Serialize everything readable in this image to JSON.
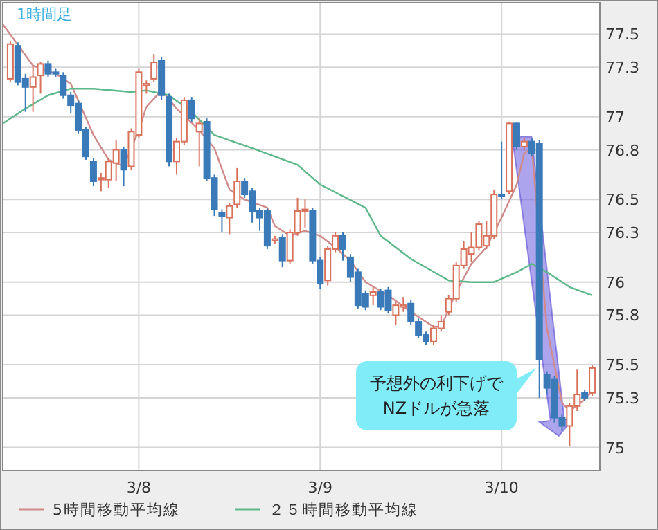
{
  "chart_data": {
    "type": "candlestick",
    "title": "1時間足",
    "x": [
      "--03-07T07:00",
      "--03-07T08:00",
      "--03-07T09:00",
      "--03-07T10:00",
      "--03-07T11:00",
      "--03-07T12:00",
      "--03-07T13:00",
      "--03-07T14:00",
      "--03-07T15:00",
      "--03-07T16:00",
      "--03-07T17:00",
      "--03-07T18:00",
      "--03-07T19:00",
      "--03-07T20:00",
      "--03-07T21:00",
      "--03-07T22:00",
      "--03-07T23:00",
      "--03-08T00:00",
      "--03-08T01:00",
      "--03-08T02:00",
      "--03-08T03:00",
      "--03-08T04:00",
      "--03-08T05:00",
      "--03-08T06:00",
      "--03-08T07:00",
      "--03-08T08:00",
      "--03-08T09:00",
      "--03-08T10:00",
      "--03-08T11:00",
      "--03-08T12:00",
      "--03-08T13:00",
      "--03-08T14:00",
      "--03-08T15:00",
      "--03-08T16:00",
      "--03-08T17:00",
      "--03-08T18:00",
      "--03-08T19:00",
      "--03-08T20:00",
      "--03-08T21:00",
      "--03-08T22:00",
      "--03-08T23:00",
      "--03-09T00:00",
      "--03-09T01:00",
      "--03-09T02:00",
      "--03-09T03:00",
      "--03-09T04:00",
      "--03-09T05:00",
      "--03-09T06:00",
      "--03-09T07:00",
      "--03-09T08:00",
      "--03-09T09:00",
      "--03-09T10:00",
      "--03-09T11:00",
      "--03-09T12:00",
      "--03-09T13:00",
      "--03-09T14:00",
      "--03-09T15:00",
      "--03-09T16:00",
      "--03-09T17:00",
      "--03-09T18:00",
      "--03-09T19:00",
      "--03-09T20:00",
      "--03-09T21:00",
      "--03-09T22:00",
      "--03-09T23:00",
      "--03-10T00:00",
      "--03-10T01:00",
      "--03-10T02:00",
      "--03-10T03:00",
      "--03-10T04:00",
      "--03-10T05:00",
      "--03-10T06:00",
      "--03-10T07:00",
      "--03-10T08:00",
      "--03-10T09:00",
      "--03-10T10:00",
      "--03-10T11:00",
      "--03-10T12:00"
    ],
    "ohlc": [
      [
        77.23,
        77.46,
        77.21,
        77.44
      ],
      [
        77.43,
        77.45,
        77.19,
        77.21
      ],
      [
        77.23,
        77.26,
        77.03,
        77.18
      ],
      [
        77.18,
        77.31,
        77.03,
        77.24
      ],
      [
        77.25,
        77.33,
        77.14,
        77.32
      ],
      [
        77.32,
        77.34,
        77.24,
        77.26
      ],
      [
        77.27,
        77.29,
        77.24,
        77.26
      ],
      [
        77.25,
        77.27,
        77.11,
        77.13
      ],
      [
        77.13,
        77.15,
        77.02,
        77.07
      ],
      [
        77.08,
        77.1,
        76.9,
        76.92
      ],
      [
        76.92,
        76.94,
        76.74,
        76.76
      ],
      [
        76.73,
        76.75,
        76.58,
        76.61
      ],
      [
        76.62,
        76.66,
        76.55,
        76.63
      ],
      [
        76.62,
        76.75,
        76.57,
        76.73
      ],
      [
        76.72,
        76.86,
        76.61,
        76.8
      ],
      [
        76.8,
        76.82,
        76.58,
        76.68
      ],
      [
        76.7,
        76.93,
        76.68,
        76.91
      ],
      [
        76.89,
        77.29,
        76.87,
        77.27
      ],
      [
        77.19,
        77.22,
        77.14,
        77.2
      ],
      [
        77.23,
        77.38,
        77.21,
        77.33
      ],
      [
        77.34,
        77.36,
        77.1,
        77.13
      ],
      [
        77.12,
        77.14,
        76.7,
        76.73
      ],
      [
        76.73,
        76.87,
        76.65,
        76.85
      ],
      [
        76.85,
        77.12,
        76.83,
        77.1
      ],
      [
        77.1,
        77.12,
        76.97,
        76.99
      ],
      [
        76.91,
        76.99,
        76.7,
        76.96
      ],
      [
        76.97,
        76.99,
        76.61,
        76.63
      ],
      [
        76.63,
        76.65,
        76.4,
        76.44
      ],
      [
        76.42,
        76.44,
        76.3,
        76.4
      ],
      [
        76.39,
        76.48,
        76.29,
        76.46
      ],
      [
        76.47,
        76.69,
        76.45,
        76.61
      ],
      [
        76.61,
        76.63,
        76.51,
        76.53
      ],
      [
        76.55,
        76.57,
        76.36,
        76.43
      ],
      [
        76.43,
        76.45,
        76.31,
        76.39
      ],
      [
        76.43,
        76.45,
        76.2,
        76.22
      ],
      [
        76.25,
        76.28,
        76.23,
        76.26
      ],
      [
        76.27,
        76.29,
        76.09,
        76.13
      ],
      [
        76.13,
        76.32,
        76.11,
        76.3
      ],
      [
        76.3,
        76.51,
        76.28,
        76.43
      ],
      [
        76.43,
        76.5,
        76.33,
        76.44
      ],
      [
        76.43,
        76.45,
        76.11,
        76.13
      ],
      [
        76.13,
        76.15,
        75.96,
        75.99
      ],
      [
        76.01,
        76.22,
        75.98,
        76.2
      ],
      [
        76.2,
        76.3,
        76.18,
        76.28
      ],
      [
        76.28,
        76.3,
        76.13,
        76.2
      ],
      [
        76.15,
        76.17,
        76.0,
        76.03
      ],
      [
        76.06,
        76.08,
        75.84,
        75.86
      ],
      [
        75.93,
        75.95,
        75.83,
        75.85
      ],
      [
        75.92,
        75.97,
        75.86,
        75.94
      ],
      [
        75.94,
        75.96,
        75.83,
        75.85
      ],
      [
        75.95,
        75.97,
        75.81,
        75.83
      ],
      [
        75.8,
        75.88,
        75.74,
        75.86
      ],
      [
        75.85,
        75.91,
        75.82,
        75.86
      ],
      [
        75.87,
        75.89,
        75.74,
        75.76
      ],
      [
        75.76,
        75.78,
        75.66,
        75.68
      ],
      [
        75.68,
        75.7,
        75.62,
        75.64
      ],
      [
        75.64,
        75.74,
        75.62,
        75.72
      ],
      [
        75.72,
        75.8,
        75.7,
        75.76
      ],
      [
        75.82,
        75.92,
        75.8,
        75.9
      ],
      [
        75.9,
        76.12,
        75.88,
        76.1
      ],
      [
        76.1,
        76.25,
        76.08,
        76.2
      ],
      [
        76.17,
        76.3,
        76.12,
        76.21
      ],
      [
        76.21,
        76.37,
        76.19,
        76.35
      ],
      [
        76.22,
        76.37,
        76.2,
        76.28
      ],
      [
        76.28,
        76.56,
        76.26,
        76.53
      ],
      [
        76.53,
        76.85,
        76.5,
        76.52
      ],
      [
        76.55,
        76.97,
        76.53,
        76.96
      ],
      [
        76.96,
        76.97,
        76.8,
        76.82
      ],
      [
        76.82,
        76.87,
        76.8,
        76.85
      ],
      [
        76.85,
        76.87,
        76.76,
        76.78
      ],
      [
        76.84,
        76.86,
        75.3,
        75.53
      ],
      [
        75.44,
        75.46,
        75.32,
        75.36
      ],
      [
        75.41,
        75.43,
        75.15,
        75.18
      ],
      [
        75.18,
        75.2,
        75.1,
        75.13
      ],
      [
        75.13,
        75.27,
        75.01,
        75.25
      ],
      [
        75.25,
        75.47,
        75.22,
        75.32
      ],
      [
        75.33,
        75.35,
        75.28,
        75.3
      ],
      [
        75.33,
        75.5,
        75.31,
        75.48
      ]
    ],
    "series": [
      {
        "type": "line",
        "name": "5時間移動平均線",
        "color": "#d08a8a",
        "x": [
          "--03-07T06:00",
          "--03-07T10:00",
          "--03-07T13:00",
          "--03-07T15:00",
          "--03-07T18:00",
          "--03-07T20:00",
          "--03-07T22:00",
          "--03-08T00:00",
          "--03-08T01:00",
          "--03-08T03:00",
          "--03-08T05:00",
          "--03-08T08:00",
          "--03-08T10:00",
          "--03-08T12:00",
          "--03-08T14:00",
          "--03-08T17:00",
          "--03-08T18:00",
          "--03-08T20:00",
          "--03-08T22:00",
          "--03-09T00:00",
          "--03-09T02:00",
          "--03-09T04:00",
          "--03-09T06:00",
          "--03-09T09:00",
          "--03-09T12:00",
          "--03-09T15:00",
          "--03-09T16:00",
          "--03-09T18:00",
          "--03-09T20:00",
          "--03-09T22:00",
          "--03-10T00:00",
          "--03-10T02:00",
          "--03-10T03:00",
          "--03-10T04:00",
          "--03-10T06:00",
          "--03-10T08:00",
          "--03-10T09:00",
          "--03-10T11:00",
          "--03-10T12:00"
        ],
        "values": [
          77.56,
          77.31,
          77.26,
          77.2,
          76.89,
          76.74,
          76.7,
          76.92,
          77.06,
          77.16,
          77.05,
          76.92,
          76.81,
          76.56,
          76.5,
          76.45,
          76.34,
          76.28,
          76.31,
          76.28,
          76.21,
          76.13,
          76.0,
          75.92,
          75.82,
          75.73,
          75.73,
          75.94,
          76.11,
          76.21,
          76.39,
          76.59,
          76.78,
          76.81,
          75.72,
          75.27,
          75.22,
          75.29,
          75.34
        ]
      },
      {
        "type": "line",
        "name": "２５時間移動平均線",
        "color": "#5cb88a",
        "x": [
          "--03-07T06:00",
          "--03-07T09:00",
          "--03-07T12:00",
          "--03-07T15:00",
          "--03-07T18:00",
          "--03-07T23:00",
          "--03-08T01:00",
          "--03-08T04:00",
          "--03-08T07:00",
          "--03-08T10:00",
          "--03-08T15:00",
          "--03-08T21:00",
          "--03-09T00:00",
          "--03-09T06:00",
          "--03-09T08:00",
          "--03-09T12:00",
          "--03-09T17:00",
          "--03-09T20:00",
          "--03-09T23:00",
          "--03-10T02:00",
          "--03-10T04:00",
          "--03-10T06:00",
          "--03-10T09:00",
          "--03-10T12:00"
        ],
        "values": [
          76.96,
          77.05,
          77.13,
          77.17,
          77.17,
          77.15,
          77.16,
          77.13,
          77.03,
          76.89,
          76.81,
          76.71,
          76.59,
          76.45,
          76.28,
          76.14,
          76.01,
          76.0,
          76.0,
          76.06,
          76.11,
          76.06,
          75.97,
          75.92
        ]
      }
    ],
    "xlim": [
      "--03-07T06:00",
      "--03-10T13:00"
    ],
    "xticks": [
      {
        "value": "--03-08",
        "label": "3/8"
      },
      {
        "value": "--03-09",
        "label": "3/9"
      },
      {
        "value": "--03-10",
        "label": "3/10"
      }
    ],
    "ylim": [
      74.86,
      77.69
    ],
    "yticks": [
      75,
      75.3,
      75.5,
      75.8,
      76,
      76.3,
      76.5,
      76.8,
      77,
      77.3,
      77.5
    ],
    "grid": true,
    "legend": "bottom",
    "annotations": [
      "予想外の利下げで\nNZドルが急落"
    ]
  }
}
